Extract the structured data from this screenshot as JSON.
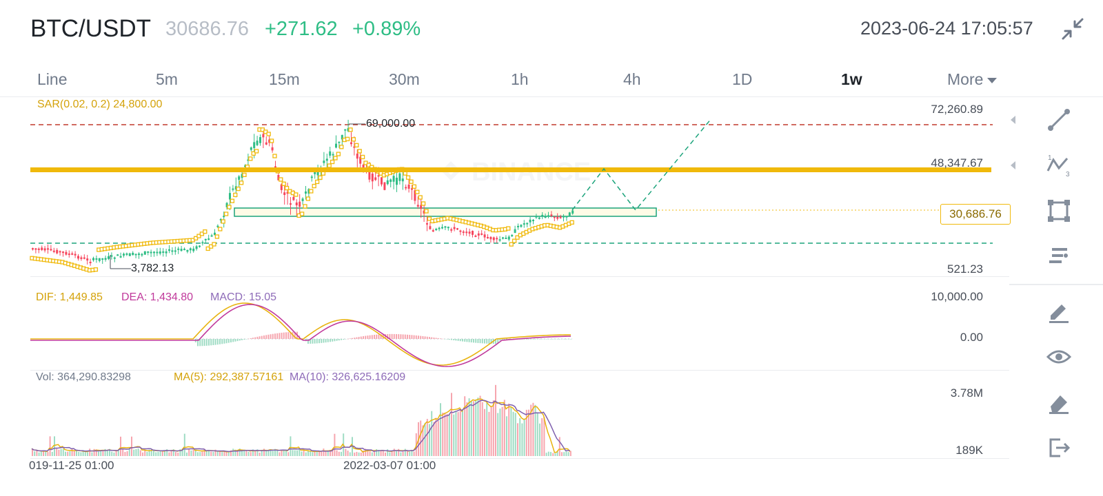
{
  "header": {
    "pair": "BTC/USDT",
    "last_price": "30686.76",
    "change": "+271.62",
    "change_pct": "+0.89%",
    "datetime": "2023-06-24 17:05:57",
    "collapse_icon": "collapse-arrows-icon"
  },
  "tabs": [
    {
      "label": "Line",
      "active": false
    },
    {
      "label": "5m",
      "active": false
    },
    {
      "label": "15m",
      "active": false
    },
    {
      "label": "30m",
      "active": false
    },
    {
      "label": "1h",
      "active": false
    },
    {
      "label": "4h",
      "active": false
    },
    {
      "label": "1D",
      "active": false
    },
    {
      "label": "1w",
      "active": true
    },
    {
      "label": "More",
      "active": false
    }
  ],
  "main_chart": {
    "indicator": "SAR(0.02, 0.2)  24,800.00",
    "axis_top": "72,260.89",
    "axis_level": "48,347.67",
    "axis_current": "30,686.76",
    "axis_bottom": "521.23",
    "high_label": "69,000.00",
    "low_label": "3,782.13",
    "watermark": "BINANCE",
    "colors": {
      "up": "#2ebd85",
      "down": "#f6465d",
      "sar": "#f0b90b",
      "level": "#f0b90b"
    }
  },
  "macd": {
    "dif": "DIF: 1,449.85",
    "dea": "DEA: 1,434.80",
    "macd": "MACD: 15.05",
    "axis_top": "10,000.00",
    "axis_zero": "0.00"
  },
  "volume": {
    "vol": "Vol: 364,290.83298",
    "ma5": "MA(5): 292,387.57161",
    "ma10": "MA(10): 326,625.16209",
    "axis_top": "3.78M",
    "axis_bottom": "189K"
  },
  "time_axis": [
    "019-11-25 01:00",
    "2022-03-07 01:00"
  ],
  "tools": [
    "trend-line-icon",
    "fib-wave-icon",
    "rectangle-icon",
    "indicator-list-icon",
    "pencil-icon",
    "eye-icon",
    "eraser-icon",
    "exit-icon"
  ]
}
